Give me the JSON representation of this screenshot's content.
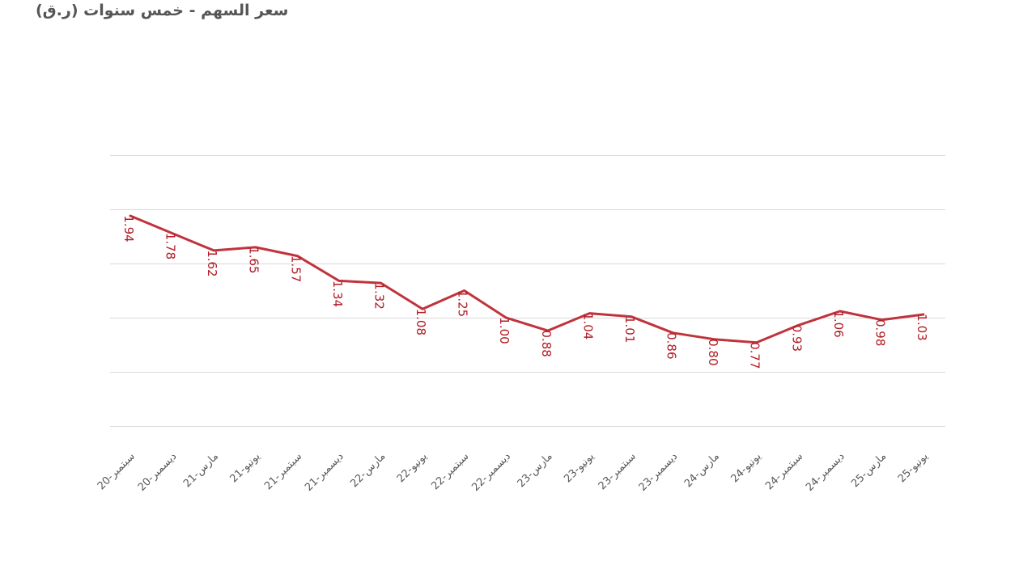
{
  "chart_data": {
    "type": "line",
    "title": "سعر السهم - خمس سنوات (ر.ق)",
    "categories": [
      "سبتمبر-20",
      "ديسمبر-20",
      "مارس-21",
      "يونيو-21",
      "سبتمبر-21",
      "ديسمبر-21",
      "مارس-22",
      "يونيو-22",
      "سبتمبر-22",
      "ديسمبر-22",
      "مارس-23",
      "يونيو-23",
      "سبتمبر-23",
      "ديسمبر-23",
      "مارس-24",
      "يونيو-24",
      "سبتمبر-24",
      "ديسمبر-24",
      "مارس-25",
      "يونيو-25"
    ],
    "values": [
      1.94,
      1.78,
      1.62,
      1.65,
      1.57,
      1.34,
      1.32,
      1.08,
      1.25,
      1.0,
      0.88,
      1.04,
      1.01,
      0.86,
      0.8,
      0.77,
      0.93,
      1.06,
      0.98,
      1.03
    ],
    "data_labels": [
      "1.94",
      "1.78",
      "1.62",
      "1.65",
      "1.57",
      "1.34",
      "1.32",
      "1.08",
      "1.25",
      "1.00",
      "0.88",
      "1.04",
      "1.01",
      "0.86",
      "0.80",
      "0.77",
      "0.93",
      "1.06",
      "0.98",
      "1.03"
    ],
    "ylim": [
      0,
      2.5
    ],
    "y_gridlines": [
      0,
      0.5,
      1.0,
      1.5,
      2.0,
      2.5
    ],
    "grid": true,
    "legend": "none",
    "xlabel": "",
    "ylabel": "",
    "line_color": "#c0333d",
    "label_color": "#b31b24"
  }
}
